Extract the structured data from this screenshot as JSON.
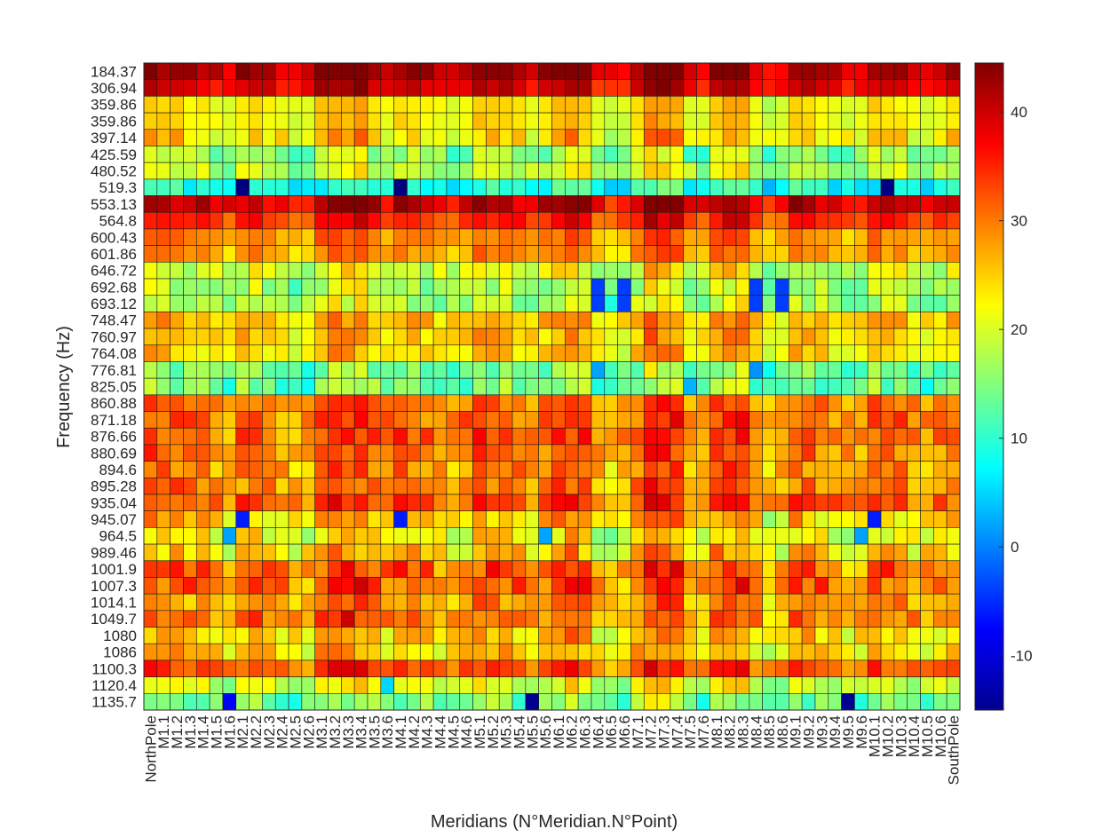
{
  "chart_data": {
    "type": "heatmap",
    "title": "",
    "xlabel": "Meridians (N°Meridian.N°Point)",
    "ylabel": "Frequency (Hz)",
    "colormap": "jet",
    "colorbar": {
      "range": [
        -15,
        44.5
      ],
      "ticks": [
        -10,
        0,
        10,
        20,
        30,
        40
      ]
    },
    "grid": true,
    "x_categories": [
      "NorthPole",
      "M1.1",
      "M1.2",
      "M1.3",
      "M1.4",
      "M1.5",
      "M1.6",
      "M2.1",
      "M2.2",
      "M2.3",
      "M2.4",
      "M2.5",
      "M2.6",
      "M3.1",
      "M3.2",
      "M3.3",
      "M3.4",
      "M3.5",
      "M3.6",
      "M4.1",
      "M4.2",
      "M4.3",
      "M4.4",
      "M4.5",
      "M4.6",
      "M5.1",
      "M5.2",
      "M5.3",
      "M5.4",
      "M5.5",
      "M5.6",
      "M6.1",
      "M6.2",
      "M6.3",
      "M6.4",
      "M6.5",
      "M6.6",
      "M7.1",
      "M7.2",
      "M7.3",
      "M7.4",
      "M7.5",
      "M7.6",
      "M8.1",
      "M8.2",
      "M8.3",
      "M8.4",
      "M8.5",
      "M8.6",
      "M9.1",
      "M9.2",
      "M9.3",
      "M9.4",
      "M9.5",
      "M9.6",
      "M10.1",
      "M10.2",
      "M10.3",
      "M10.4",
      "M10.5",
      "M10.6",
      "SouthPole"
    ],
    "y_categories": [
      "184.37",
      "306.94",
      "359.86",
      "359.86",
      "397.14",
      "425.59",
      "480.52",
      "519.3",
      "553.13",
      "564.8",
      "600.43",
      "601.86",
      "646.72",
      "692.68",
      "693.12",
      "748.47",
      "760.97",
      "764.08",
      "776.81",
      "825.05",
      "860.88",
      "871.18",
      "876.66",
      "880.69",
      "894.6",
      "895.28",
      "935.04",
      "945.07",
      "964.5",
      "989.46",
      "1001.9",
      "1007.3",
      "1014.1",
      "1049.7",
      "1080",
      "1086",
      "1100.3",
      "1120.4",
      "1135.7"
    ],
    "row_base": [
      42,
      39,
      23,
      23,
      24,
      16,
      19,
      9,
      40,
      35,
      29,
      28,
      20,
      17,
      17,
      26,
      25,
      24,
      14,
      14,
      30,
      31,
      31,
      30,
      29,
      29,
      32,
      25,
      22,
      25,
      31,
      31,
      28,
      30,
      25,
      25,
      32,
      20,
      14
    ],
    "row_jitter": [
      2,
      2,
      1,
      1,
      4,
      4,
      3,
      3,
      3,
      2,
      2,
      2,
      4,
      4,
      4,
      3,
      3,
      3,
      4,
      4,
      3,
      4,
      4,
      4,
      4,
      4,
      4,
      5,
      4,
      5,
      5,
      5,
      4,
      4,
      4,
      4,
      3,
      3,
      4
    ],
    "col_profile": [
      3,
      2,
      2,
      0,
      0,
      -2,
      -4,
      1,
      2,
      -1,
      -3,
      -4,
      -3,
      3,
      5,
      4,
      5,
      1,
      -2,
      2,
      1,
      0,
      -2,
      -3,
      -1,
      3,
      2,
      2,
      0,
      -2,
      0,
      3,
      5,
      3,
      -4,
      -6,
      -4,
      1,
      7,
      6,
      5,
      -3,
      -4,
      3,
      5,
      5,
      -2,
      -6,
      -4,
      2,
      1,
      0,
      -2,
      -4,
      -3,
      2,
      1,
      0,
      -2,
      -3,
      -2,
      0
    ],
    "overrides": [
      {
        "row": "519.3",
        "col": "M2.1",
        "value": -15
      },
      {
        "row": "519.3",
        "col": "M4.1",
        "value": -15
      },
      {
        "row": "519.3",
        "col": "M10.2",
        "value": -15
      },
      {
        "row": "519.3",
        "col": "M10.1",
        "value": 5
      },
      {
        "row": "519.3",
        "col": "M3.1",
        "value": 6
      },
      {
        "row": "692.68",
        "col": "M6.4",
        "value": -4
      },
      {
        "row": "692.68",
        "col": "M6.6",
        "value": -4
      },
      {
        "row": "693.12",
        "col": "M6.4",
        "value": -4
      },
      {
        "row": "693.12",
        "col": "M6.6",
        "value": -4
      },
      {
        "row": "692.68",
        "col": "M8.4",
        "value": -4
      },
      {
        "row": "692.68",
        "col": "M8.6",
        "value": -4
      },
      {
        "row": "693.12",
        "col": "M8.4",
        "value": -4
      },
      {
        "row": "693.12",
        "col": "M8.6",
        "value": -4
      },
      {
        "row": "776.81",
        "col": "M6.4",
        "value": 2
      },
      {
        "row": "776.81",
        "col": "M8.4",
        "value": 1
      },
      {
        "row": "825.05",
        "col": "M7.5",
        "value": 3
      },
      {
        "row": "945.07",
        "col": "M2.1",
        "value": -6
      },
      {
        "row": "945.07",
        "col": "M4.1",
        "value": -6
      },
      {
        "row": "945.07",
        "col": "M10.1",
        "value": -6
      },
      {
        "row": "964.5",
        "col": "M1.6",
        "value": 2
      },
      {
        "row": "964.5",
        "col": "M5.6",
        "value": 2
      },
      {
        "row": "964.5",
        "col": "M9.6",
        "value": 2
      },
      {
        "row": "1135.7",
        "col": "M1.6",
        "value": -8
      },
      {
        "row": "1135.7",
        "col": "M5.5",
        "value": -14
      },
      {
        "row": "1135.7",
        "col": "M9.5",
        "value": -14
      },
      {
        "row": "1120.4",
        "col": "M3.6",
        "value": 5
      },
      {
        "row": "1049.7",
        "col": "M3.3",
        "value": 40
      },
      {
        "row": "1100.3",
        "col": "M3.2",
        "value": 39
      },
      {
        "row": "1100.3",
        "col": "M3.3",
        "value": 39
      }
    ]
  }
}
